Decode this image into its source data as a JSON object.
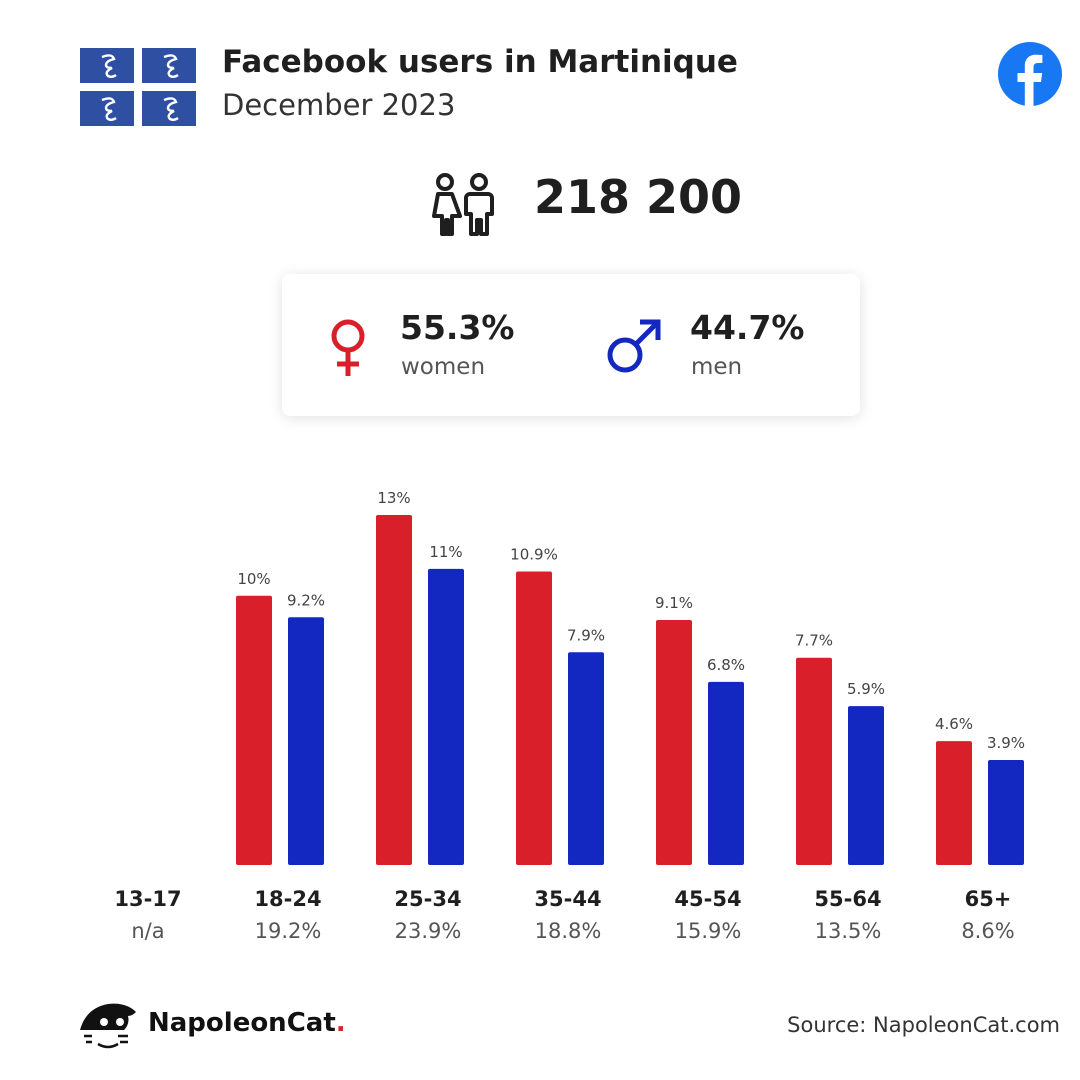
{
  "header": {
    "title": "Facebook users in Martinique",
    "subtitle": "December 2023"
  },
  "total_users": "218 200",
  "gender": {
    "women": {
      "pct": "55.3%",
      "label": "women"
    },
    "men": {
      "pct": "44.7%",
      "label": "men"
    }
  },
  "colors": {
    "women": "#d91f2a",
    "men": "#1228c0",
    "flag_blue": "#2f4fa3",
    "facebook": "#1877f2"
  },
  "icons": [
    "martinique-flag-icon",
    "facebook-icon",
    "people-icon",
    "female-symbol-icon",
    "male-symbol-icon",
    "napoleoncat-logo-icon"
  ],
  "chart_data": {
    "type": "bar",
    "categories": [
      "13-17",
      "18-24",
      "25-34",
      "35-44",
      "45-54",
      "55-64",
      "65+"
    ],
    "category_totals": [
      "n/a",
      "19.2%",
      "23.9%",
      "18.8%",
      "15.9%",
      "13.5%",
      "8.6%"
    ],
    "series": [
      {
        "name": "women",
        "values": [
          null,
          10,
          13,
          10.9,
          9.1,
          7.7,
          4.6
        ],
        "labels": [
          null,
          "10%",
          "13%",
          "10.9%",
          "9.1%",
          "7.7%",
          "4.6%"
        ]
      },
      {
        "name": "men",
        "values": [
          null,
          9.2,
          11,
          7.9,
          6.8,
          5.9,
          3.9
        ],
        "labels": [
          null,
          "9.2%",
          "11%",
          "7.9%",
          "6.8%",
          "5.9%",
          "3.9%"
        ]
      }
    ],
    "ylim": [
      0,
      13
    ],
    "grid": false
  },
  "footer": {
    "brand": "NapoleonCat",
    "brand_dot": ".",
    "source": "Source: NapoleonCat.com"
  }
}
